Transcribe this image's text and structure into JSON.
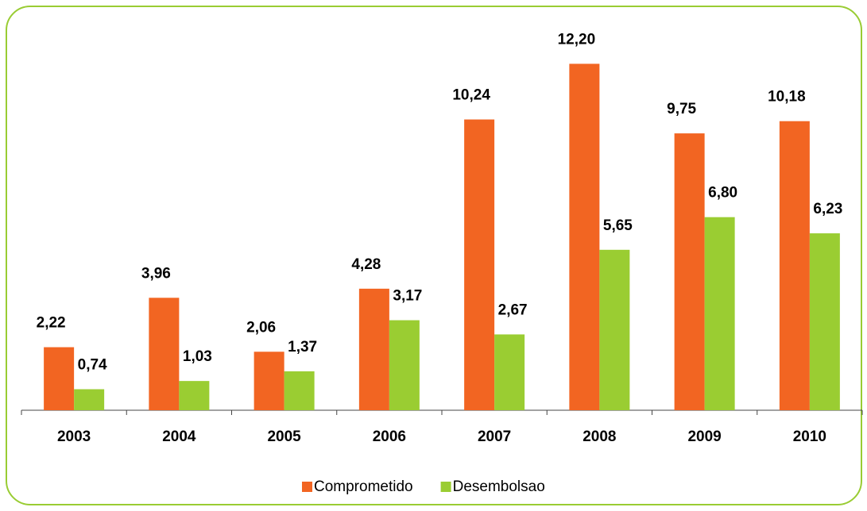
{
  "chart_data": {
    "type": "bar",
    "categories": [
      "2003",
      "2004",
      "2005",
      "2006",
      "2007",
      "2008",
      "2009",
      "2010"
    ],
    "series": [
      {
        "name": "Comprometido",
        "color": "#f26522",
        "values": [
          2.22,
          3.96,
          2.06,
          4.28,
          10.24,
          12.2,
          9.75,
          10.18
        ],
        "value_labels": [
          "2,22",
          "3,96",
          "2,06",
          "4,28",
          "10,24",
          "12,20",
          "9,75",
          "10,18"
        ]
      },
      {
        "name": "Desembolsao",
        "color": "#9acd32",
        "values": [
          0.74,
          1.03,
          1.37,
          3.17,
          2.67,
          5.65,
          6.8,
          6.23
        ],
        "value_labels": [
          "0,74",
          "1,03",
          "1,37",
          "3,17",
          "2,67",
          "5,65",
          "6,80",
          "6,23"
        ]
      }
    ],
    "ylim": [
      0,
      14
    ],
    "legend": "bottom"
  }
}
